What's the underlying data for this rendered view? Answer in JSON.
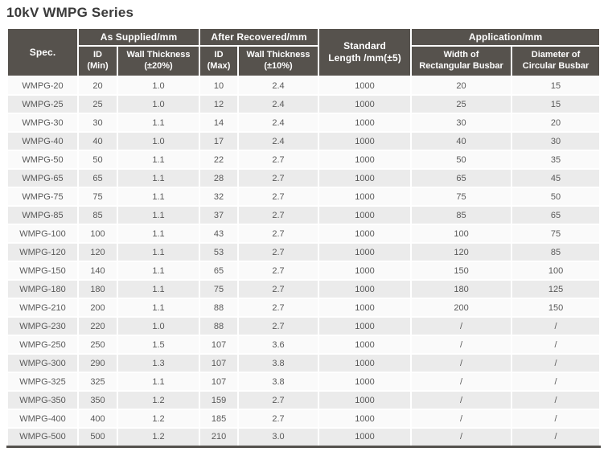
{
  "page": {
    "title": "10kV WMPG Series"
  },
  "colors": {
    "header_bg": "#56524d",
    "header_text": "#ffffff",
    "row_base": "#fafafa",
    "row_alt": "#ebebeb",
    "data_text": "#595959",
    "title_text": "#3a3a3a",
    "bottom_border": "#55524e"
  },
  "table": {
    "header": {
      "spec": "Spec.",
      "as_supplied": {
        "label": "As Supplied/mm",
        "columns": [
          {
            "line1": "ID",
            "line2": "(Min)"
          },
          {
            "line1": "Wall Thickness",
            "line2": "(±20%)"
          }
        ]
      },
      "after_recovered": {
        "label": "After Recovered/mm",
        "columns": [
          {
            "line1": "ID",
            "line2": "(Max)"
          },
          {
            "line1": "Wall Thickness",
            "line2": "(±10%)"
          }
        ]
      },
      "standard_length": {
        "line1": "Standard",
        "line2": "Length /mm(±5)"
      },
      "application": {
        "label": "Application/mm",
        "columns": [
          {
            "line1": "Width of",
            "line2": "Rectangular Busbar"
          },
          {
            "line1": "Diameter of",
            "line2": "Circular Busbar"
          }
        ]
      }
    },
    "rows": [
      {
        "spec": "WMPG-20",
        "id_min": "20",
        "wall_supplied": "1.0",
        "id_max": "10",
        "wall_recovered": "2.4",
        "std_length": "1000",
        "busbar_width": "20",
        "busbar_diameter": "15"
      },
      {
        "spec": "WMPG-25",
        "id_min": "25",
        "wall_supplied": "1.0",
        "id_max": "12",
        "wall_recovered": "2.4",
        "std_length": "1000",
        "busbar_width": "25",
        "busbar_diameter": "15"
      },
      {
        "spec": "WMPG-30",
        "id_min": "30",
        "wall_supplied": "1.1",
        "id_max": "14",
        "wall_recovered": "2.4",
        "std_length": "1000",
        "busbar_width": "30",
        "busbar_diameter": "20"
      },
      {
        "spec": "WMPG-40",
        "id_min": "40",
        "wall_supplied": "1.0",
        "id_max": "17",
        "wall_recovered": "2.4",
        "std_length": "1000",
        "busbar_width": "40",
        "busbar_diameter": "30"
      },
      {
        "spec": "WMPG-50",
        "id_min": "50",
        "wall_supplied": "1.1",
        "id_max": "22",
        "wall_recovered": "2.7",
        "std_length": "1000",
        "busbar_width": "50",
        "busbar_diameter": "35"
      },
      {
        "spec": "WMPG-65",
        "id_min": "65",
        "wall_supplied": "1.1",
        "id_max": "28",
        "wall_recovered": "2.7",
        "std_length": "1000",
        "busbar_width": "65",
        "busbar_diameter": "45"
      },
      {
        "spec": "WMPG-75",
        "id_min": "75",
        "wall_supplied": "1.1",
        "id_max": "32",
        "wall_recovered": "2.7",
        "std_length": "1000",
        "busbar_width": "75",
        "busbar_diameter": "50"
      },
      {
        "spec": "WMPG-85",
        "id_min": "85",
        "wall_supplied": "1.1",
        "id_max": "37",
        "wall_recovered": "2.7",
        "std_length": "1000",
        "busbar_width": "85",
        "busbar_diameter": "65"
      },
      {
        "spec": "WMPG-100",
        "id_min": "100",
        "wall_supplied": "1.1",
        "id_max": "43",
        "wall_recovered": "2.7",
        "std_length": "1000",
        "busbar_width": "100",
        "busbar_diameter": "75"
      },
      {
        "spec": "WMPG-120",
        "id_min": "120",
        "wall_supplied": "1.1",
        "id_max": "53",
        "wall_recovered": "2.7",
        "std_length": "1000",
        "busbar_width": "120",
        "busbar_diameter": "85"
      },
      {
        "spec": "WMPG-150",
        "id_min": "140",
        "wall_supplied": "1.1",
        "id_max": "65",
        "wall_recovered": "2.7",
        "std_length": "1000",
        "busbar_width": "150",
        "busbar_diameter": "100"
      },
      {
        "spec": "WMPG-180",
        "id_min": "180",
        "wall_supplied": "1.1",
        "id_max": "75",
        "wall_recovered": "2.7",
        "std_length": "1000",
        "busbar_width": "180",
        "busbar_diameter": "125"
      },
      {
        "spec": "WMPG-210",
        "id_min": "200",
        "wall_supplied": "1.1",
        "id_max": "88",
        "wall_recovered": "2.7",
        "std_length": "1000",
        "busbar_width": "200",
        "busbar_diameter": "150"
      },
      {
        "spec": "WMPG-230",
        "id_min": "220",
        "wall_supplied": "1.0",
        "id_max": "88",
        "wall_recovered": "2.7",
        "std_length": "1000",
        "busbar_width": "/",
        "busbar_diameter": "/"
      },
      {
        "spec": "WMPG-250",
        "id_min": "250",
        "wall_supplied": "1.5",
        "id_max": "107",
        "wall_recovered": "3.6",
        "std_length": "1000",
        "busbar_width": "/",
        "busbar_diameter": "/"
      },
      {
        "spec": "WMPG-300",
        "id_min": "290",
        "wall_supplied": "1.3",
        "id_max": "107",
        "wall_recovered": "3.8",
        "std_length": "1000",
        "busbar_width": "/",
        "busbar_diameter": "/"
      },
      {
        "spec": "WMPG-325",
        "id_min": "325",
        "wall_supplied": "1.1",
        "id_max": "107",
        "wall_recovered": "3.8",
        "std_length": "1000",
        "busbar_width": "/",
        "busbar_diameter": "/"
      },
      {
        "spec": "WMPG-350",
        "id_min": "350",
        "wall_supplied": "1.2",
        "id_max": "159",
        "wall_recovered": "2.7",
        "std_length": "1000",
        "busbar_width": "/",
        "busbar_diameter": "/"
      },
      {
        "spec": "WMPG-400",
        "id_min": "400",
        "wall_supplied": "1.2",
        "id_max": "185",
        "wall_recovered": "2.7",
        "std_length": "1000",
        "busbar_width": "/",
        "busbar_diameter": "/"
      },
      {
        "spec": "WMPG-500",
        "id_min": "500",
        "wall_supplied": "1.2",
        "id_max": "210",
        "wall_recovered": "3.0",
        "std_length": "1000",
        "busbar_width": "/",
        "busbar_diameter": "/"
      }
    ]
  }
}
